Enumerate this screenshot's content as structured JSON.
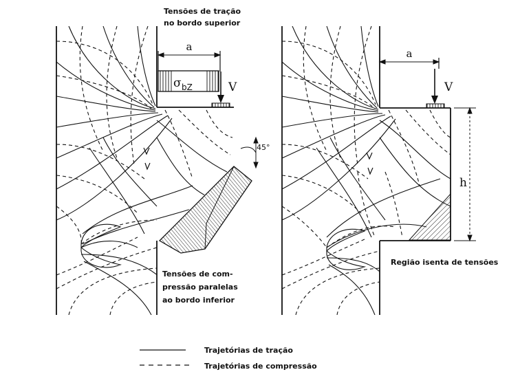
{
  "left_figure": {
    "top_label_line1": "Tensões de tração",
    "top_label_line2": "no bordo superior",
    "dim_a": "a",
    "sigma_symbol": "σ",
    "sigma_subscript": "bZ",
    "load_label": "V",
    "angle_label": "45°",
    "bottom_label_line1": "Tensões de com-",
    "bottom_label_line2": "pressão paralelas",
    "bottom_label_line3": "ao bordo inferior"
  },
  "right_figure": {
    "dim_a": "a",
    "load_label": "V",
    "height_label": "h",
    "region_label": "Região isenta de tensões"
  },
  "legend": {
    "tension_label": "Trajetórias de tração",
    "compression_label": "Trajetórias de compressão"
  },
  "colors": {
    "ink": "#111111",
    "background": "#ffffff"
  }
}
